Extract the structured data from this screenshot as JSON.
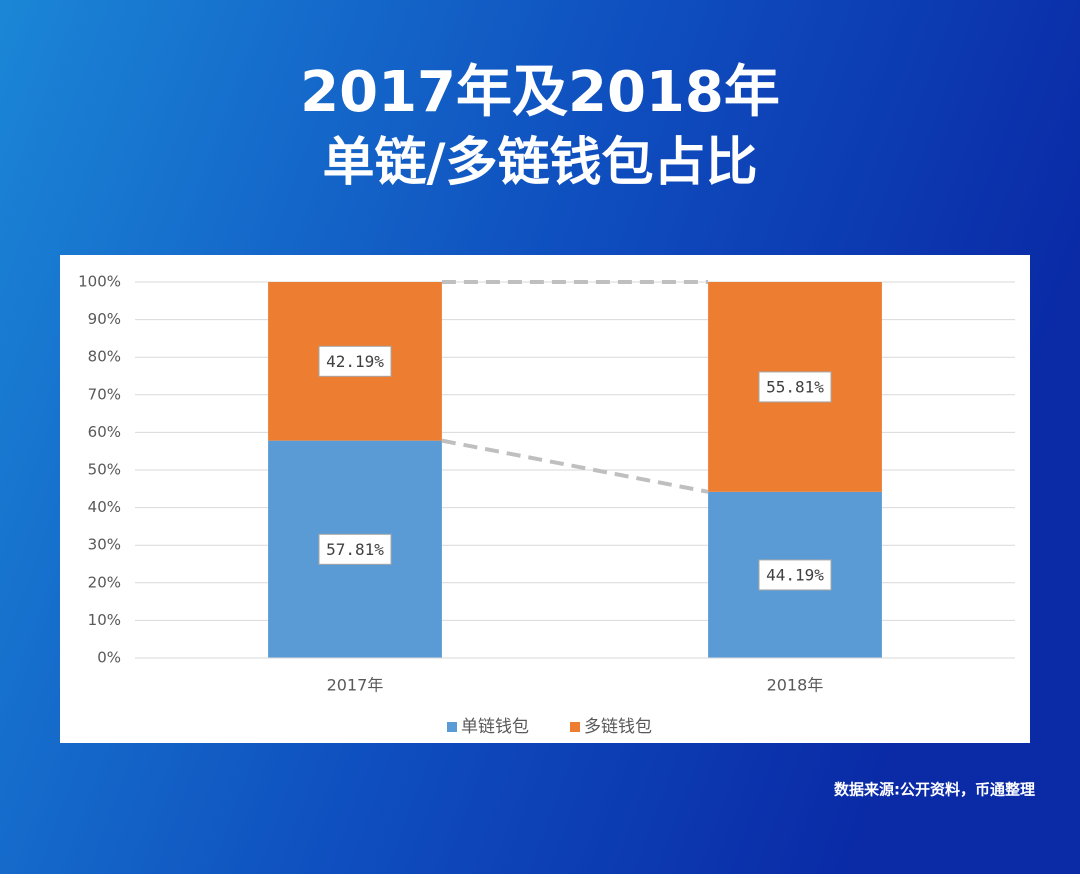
{
  "chart_data": {
    "type": "stacked_bar",
    "title": "2017年及2018年",
    "subtitle": "单链/多链钱包占比",
    "categories": [
      "2017年",
      "2018年"
    ],
    "series": [
      {
        "name": "单链钱包",
        "color": "#5b9bd5",
        "values": [
          57.81,
          44.19
        ],
        "value_labels": [
          "57.81%",
          "44.19%"
        ]
      },
      {
        "name": "多链钱包",
        "color": "#ed7d31",
        "values": [
          42.19,
          55.81
        ],
        "value_labels": [
          "42.19%",
          "55.81%"
        ]
      }
    ],
    "ylim": [
      0,
      100
    ],
    "yticks": [
      {
        "value": 0,
        "label": "0%"
      },
      {
        "value": 10,
        "label": "10%"
      },
      {
        "value": 20,
        "label": "20%"
      },
      {
        "value": 30,
        "label": "30%"
      },
      {
        "value": 40,
        "label": "40%"
      },
      {
        "value": 50,
        "label": "50%"
      },
      {
        "value": 60,
        "label": "60%"
      },
      {
        "value": 70,
        "label": "70%"
      },
      {
        "value": 80,
        "label": "80%"
      },
      {
        "value": 90,
        "label": "90%"
      },
      {
        "value": 100,
        "label": "100%"
      }
    ],
    "grid": true,
    "legend": "bottom",
    "source": "数据来源:公开资料，币通整理"
  }
}
